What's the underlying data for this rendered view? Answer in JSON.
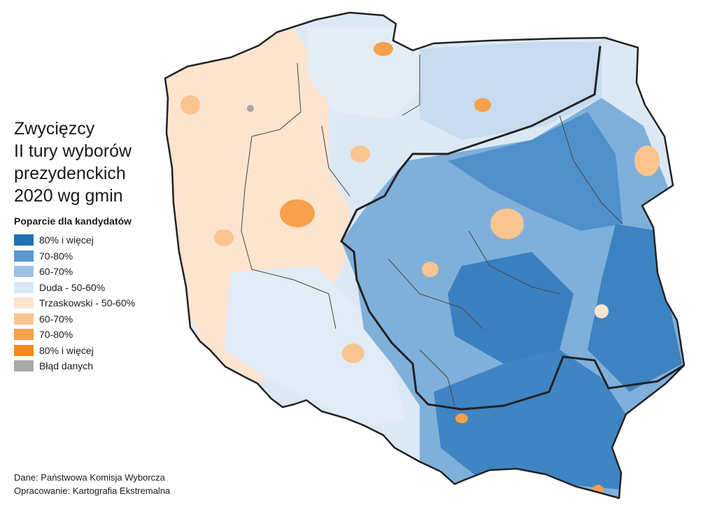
{
  "title_lines": [
    "Zwycięzcy",
    "II tury wyborów",
    "prezydenckich",
    "2020 wg gmin"
  ],
  "legend": {
    "heading": "Poparcie dla kandydatów",
    "items": [
      {
        "label": "80% i więcej",
        "color": "#1f6fb4"
      },
      {
        "label": "70-80%",
        "color": "#5b98d0"
      },
      {
        "label": "60-70%",
        "color": "#9ec3e4"
      },
      {
        "label": "Duda - 50-60%",
        "color": "#d9e8f5"
      },
      {
        "label": "Trzaskowski - 50-60%",
        "color": "#fde4cf"
      },
      {
        "label": "60-70%",
        "color": "#fac48f"
      },
      {
        "label": "70-80%",
        "color": "#f8a04c"
      },
      {
        "label": "80% i więcej",
        "color": "#f58a1f"
      },
      {
        "label": "Błąd danych",
        "color": "#a9a9a9"
      }
    ]
  },
  "source": {
    "data": "Dane: Państwowa Komisja Wyborcza",
    "author": "Opracowanie: Kartografia Ekstremalna"
  },
  "map_colors": {
    "outline": "#222222",
    "internal_border": "#444444"
  }
}
